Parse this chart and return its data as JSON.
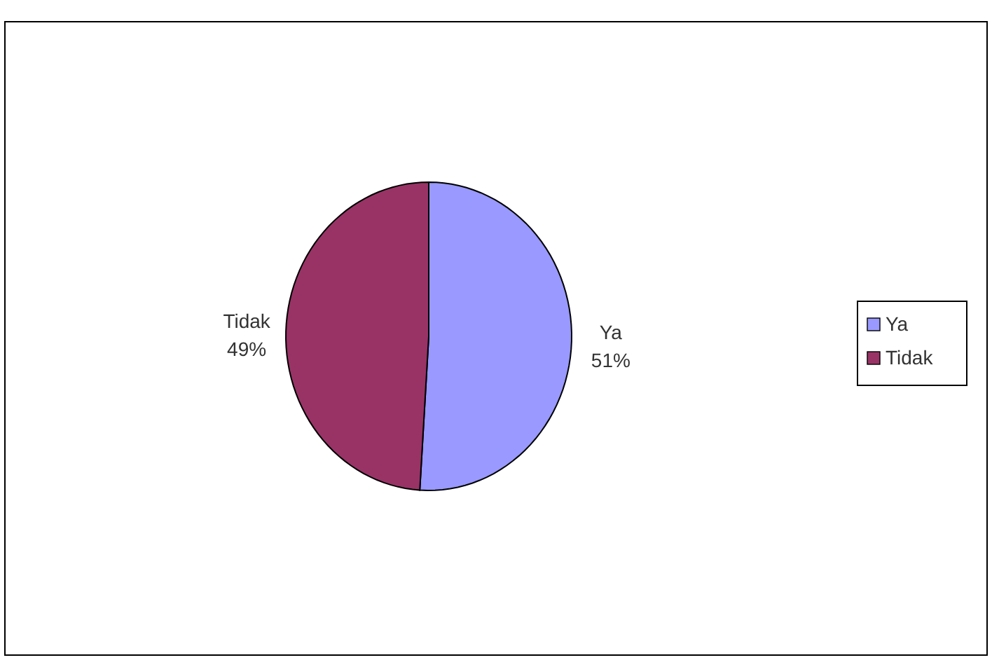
{
  "chart_data": {
    "type": "pie",
    "categories": [
      "Ya",
      "Tidak"
    ],
    "values": [
      51,
      49
    ],
    "colors": [
      "#9999ff",
      "#993366"
    ],
    "value_labels": [
      "51%",
      "49%"
    ],
    "legend": "right"
  }
}
